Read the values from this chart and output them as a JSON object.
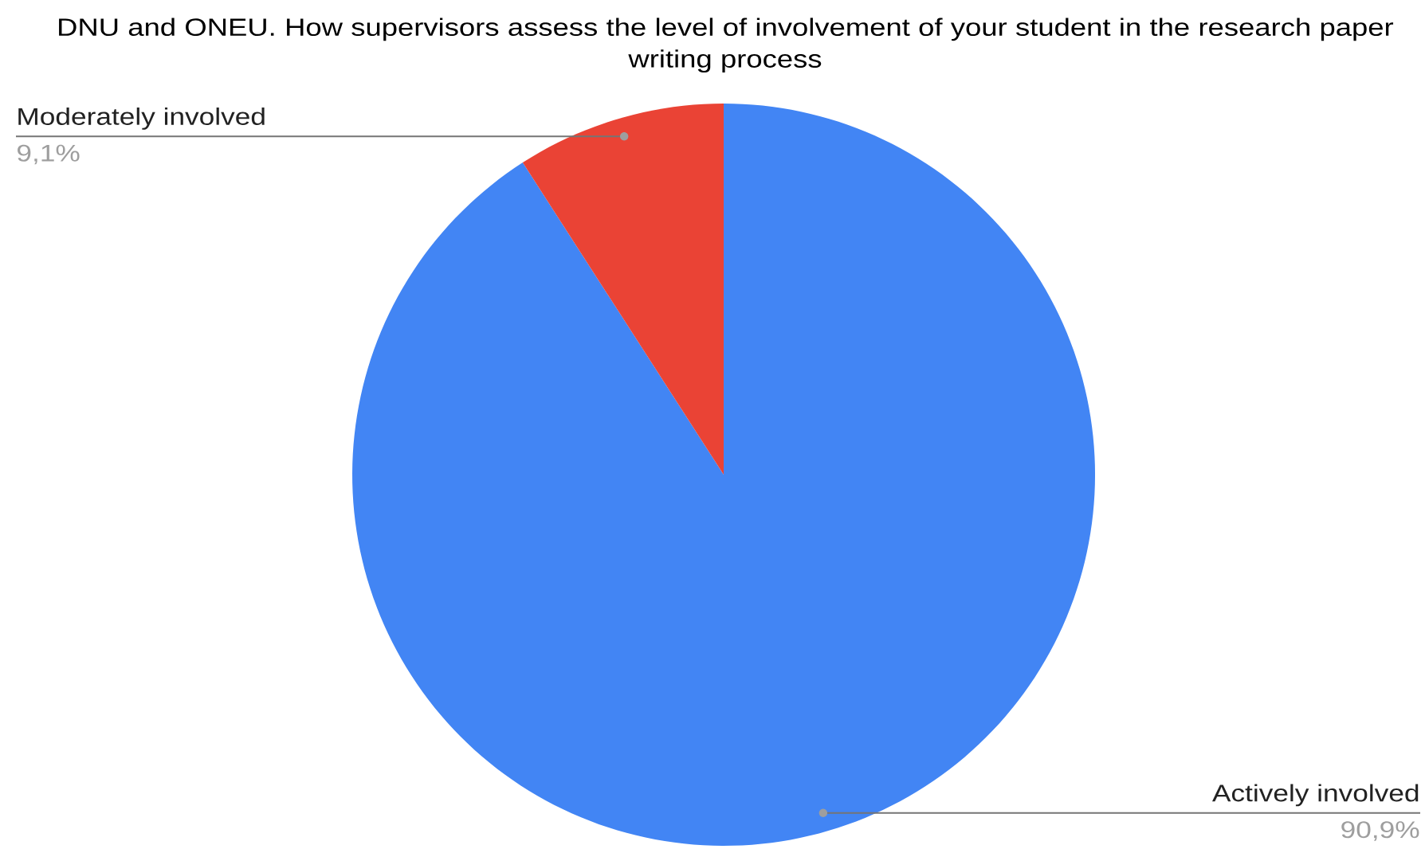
{
  "chart_data": {
    "type": "pie",
    "title": "DNU and ONEU. How supervisors assess the level of involvement of your student in the research paper writing process",
    "categories": [
      "Actively involved",
      "Moderately involved"
    ],
    "values": [
      90.9,
      9.1
    ],
    "colors": [
      "#4285f4",
      "#ea4335"
    ],
    "value_labels": [
      "90,9%",
      "9,1%"
    ]
  }
}
